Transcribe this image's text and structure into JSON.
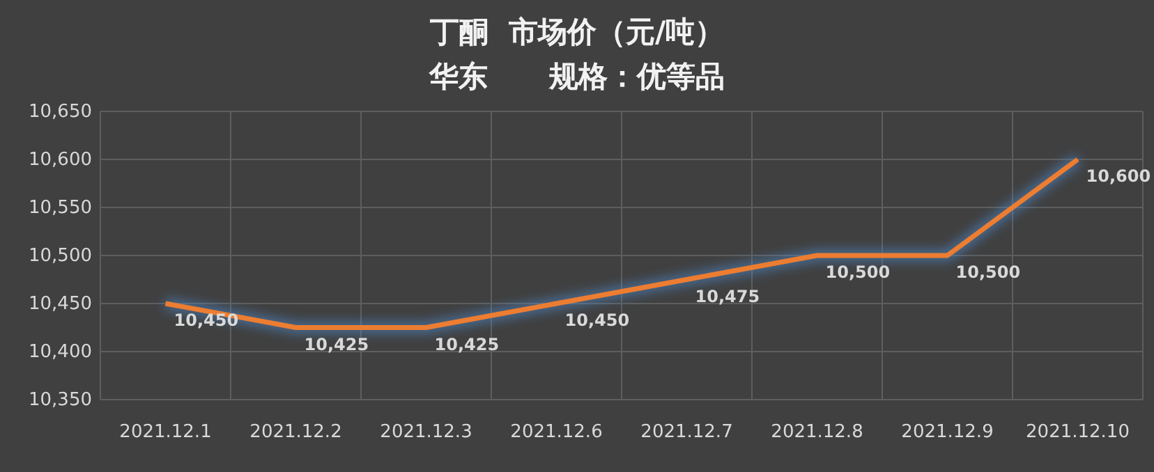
{
  "chart_data": {
    "type": "line",
    "title": "丁酮  市场价（元/吨）",
    "subtitle": "华东      规格：优等品",
    "categories": [
      "2021.12.1",
      "2021.12.2",
      "2021.12.3",
      "2021.12.6",
      "2021.12.7",
      "2021.12.8",
      "2021.12.9",
      "2021.12.10"
    ],
    "series": [
      {
        "color": "#ed7d31",
        "values": [
          10450,
          10425,
          10425,
          10450,
          10475,
          10500,
          10500,
          10600
        ],
        "value_labels": [
          "10,450",
          "10,425",
          "10,425",
          "10,450",
          "10,475",
          "10,500",
          "10,500",
          "10,600"
        ]
      }
    ],
    "ylim": [
      10350,
      10650
    ],
    "yticks": [
      {
        "value": 10350,
        "label": "10,350"
      },
      {
        "value": 10400,
        "label": "10,400"
      },
      {
        "value": 10450,
        "label": "10,450"
      },
      {
        "value": 10500,
        "label": "10,500"
      },
      {
        "value": 10550,
        "label": "10,550"
      },
      {
        "value": 10600,
        "label": "10,600"
      },
      {
        "value": 10650,
        "label": "10,650"
      }
    ],
    "grid": true,
    "marker": "none",
    "line_style": "solid"
  }
}
